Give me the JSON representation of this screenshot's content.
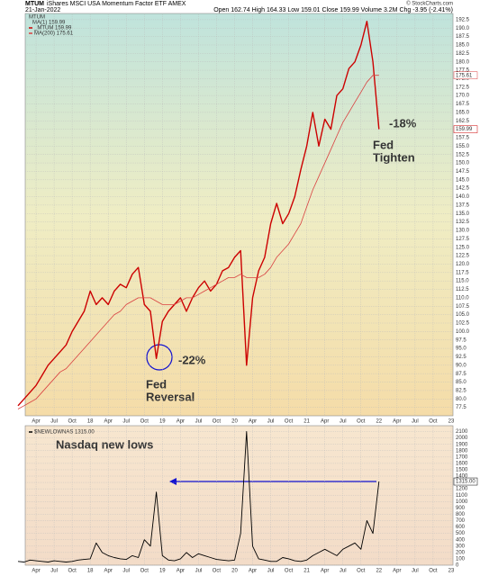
{
  "chart_data": [
    {
      "type": "line",
      "title": "MTUM",
      "subtitle": "iShares MSCI USA Momentum Factor ETF AMEX",
      "date": "21-Jan-2022",
      "quote": "Open 162.74  High 164.33  Low 159.01  Close 159.99  Volume 3.2M  Chg -3.95 (-2.41%)",
      "credit": "© StockCharts.com",
      "legend_title": "MTUM",
      "legend_extra": "MA(1) 159.99",
      "annotations": [
        "-22%",
        "Fed",
        "Reversal",
        "-18%",
        "Fed",
        "Tighten"
      ],
      "categories": [
        null,
        null,
        null,
        "Apr",
        null,
        null,
        "Jul",
        null,
        null,
        "Oct",
        null,
        null,
        "18",
        null,
        null,
        "Apr",
        null,
        null,
        "Jul",
        null,
        null,
        "Oct",
        null,
        null,
        "19",
        null,
        null,
        "Apr",
        null,
        null,
        "Jul",
        null,
        null,
        "Oct",
        null,
        null,
        "20",
        null,
        null,
        "Apr",
        null,
        null,
        "Jul",
        null,
        null,
        "Oct",
        null,
        null,
        "21",
        null,
        null,
        "Apr",
        null,
        null,
        "Jul",
        null,
        null,
        "Oct",
        null,
        null,
        "22",
        null,
        null,
        "Apr",
        null,
        null,
        "Jul",
        null,
        null,
        "Oct",
        null,
        null,
        "23"
      ],
      "series": [
        {
          "name": "_MTUM 159.99",
          "color": "#cc0000",
          "width": 1.4,
          "last_label": "159.99",
          "values": [
            78,
            80,
            82,
            84,
            87,
            90,
            92,
            94,
            96,
            100,
            103,
            106,
            112,
            108,
            110,
            108,
            112,
            114,
            113,
            117,
            119,
            108,
            106,
            92,
            103,
            106,
            108,
            110,
            106,
            110,
            113,
            115,
            112,
            114,
            118,
            119,
            122,
            124,
            90,
            110,
            118,
            122,
            132,
            138,
            132,
            135,
            140,
            148,
            155,
            165,
            155,
            163,
            160,
            170,
            172,
            178,
            180,
            185,
            192,
            180,
            160,
            null,
            null,
            null,
            null,
            null,
            null,
            null,
            null,
            null,
            null,
            null,
            null
          ]
        },
        {
          "name": "MA(200) 175.61",
          "color": "#d94040",
          "width": 0.8,
          "last_label": "175.61",
          "values": [
            77,
            78,
            79,
            80,
            82,
            84,
            86,
            88,
            89,
            91,
            93,
            95,
            97,
            99,
            101,
            103,
            105,
            106,
            108,
            109,
            110,
            110,
            110,
            109,
            108,
            108,
            108,
            109,
            110,
            110,
            111,
            112,
            113,
            114,
            115,
            116,
            116,
            117,
            116,
            116,
            116,
            117,
            119,
            122,
            124,
            126,
            129,
            132,
            137,
            142,
            146,
            150,
            154,
            158,
            162,
            165,
            168,
            171,
            174,
            176,
            176,
            null,
            null,
            null,
            null,
            null,
            null,
            null,
            null,
            null,
            null,
            null,
            null
          ]
        }
      ],
      "ylim": [
        75,
        193
      ],
      "yticks": [
        77.5,
        {
          "value": 80,
          "label": "80.0"
        },
        82.5,
        {
          "value": 85,
          "label": "85.0"
        },
        87.5,
        {
          "value": 90,
          "label": "90.0"
        },
        92.5,
        {
          "value": 95,
          "label": "95.0"
        },
        97.5,
        {
          "value": 100,
          "label": "100.0"
        },
        102.5,
        {
          "value": 105,
          "label": "105.0"
        },
        107.5,
        {
          "value": 110,
          "label": "110.0"
        },
        112.5,
        {
          "value": 115,
          "label": "115.0"
        },
        117.5,
        {
          "value": 120,
          "label": "120.0"
        },
        122.5,
        {
          "value": 125,
          "label": "125.0"
        },
        127.5,
        {
          "value": 130,
          "label": "130.0"
        },
        132.5,
        {
          "value": 135,
          "label": "135.0"
        },
        137.5,
        {
          "value": 140,
          "label": "140.0"
        },
        142.5,
        {
          "value": 145,
          "label": "145.0"
        },
        147.5,
        {
          "value": 150,
          "label": "150.0"
        },
        152.5,
        {
          "value": 155,
          "label": "155.0"
        },
        157.5,
        {
          "value": 160,
          "label": "160.0"
        },
        162.5,
        {
          "value": 165,
          "label": "165.0"
        },
        167.5,
        {
          "value": 170,
          "label": "170.0"
        },
        172.5,
        {
          "value": 175,
          "label": "175.0"
        },
        177.5,
        {
          "value": 180,
          "label": "180.0"
        },
        182.5,
        {
          "value": 185,
          "label": "185.0"
        },
        187.5,
        {
          "value": 190,
          "label": "190.0"
        },
        192.5
      ],
      "grid": true
    },
    {
      "type": "line",
      "annotations": [
        "Nasdaq new lows"
      ],
      "categories": [
        null,
        null,
        null,
        "Apr",
        null,
        null,
        "Jul",
        null,
        null,
        "Oct",
        null,
        null,
        "18",
        null,
        null,
        "Apr",
        null,
        null,
        "Jul",
        null,
        null,
        "Oct",
        null,
        null,
        "19",
        null,
        null,
        "Apr",
        null,
        null,
        "Jul",
        null,
        null,
        "Oct",
        null,
        null,
        "20",
        null,
        null,
        "Apr",
        null,
        null,
        "Jul",
        null,
        null,
        "Oct",
        null,
        null,
        "21",
        null,
        null,
        "Apr",
        null,
        null,
        "Jul",
        null,
        null,
        "Oct",
        null,
        null,
        "22",
        null,
        null,
        "Apr",
        null,
        null,
        "Jul",
        null,
        null,
        "Oct",
        null,
        null,
        "23"
      ],
      "series": [
        {
          "name": "$NEWLOWNAS 1315.00",
          "color": "#000000",
          "width": 0.9,
          "last_label": "1315.00",
          "values": [
            60,
            50,
            80,
            70,
            60,
            50,
            70,
            60,
            50,
            60,
            80,
            90,
            100,
            350,
            200,
            150,
            120,
            100,
            90,
            150,
            120,
            400,
            300,
            1150,
            150,
            80,
            70,
            100,
            200,
            120,
            180,
            150,
            120,
            90,
            80,
            70,
            80,
            500,
            2100,
            300,
            100,
            80,
            60,
            60,
            120,
            100,
            70,
            60,
            80,
            150,
            200,
            250,
            200,
            150,
            250,
            300,
            350,
            250,
            700,
            500,
            1315,
            null,
            null,
            null,
            null,
            null,
            null,
            null,
            null,
            null,
            null,
            null,
            null
          ]
        }
      ],
      "ylim": [
        0,
        2150
      ],
      "yticks": [
        0,
        100,
        200,
        300,
        400,
        500,
        600,
        700,
        800,
        900,
        1000,
        1100,
        1200,
        1300,
        1400,
        1500,
        1600,
        1700,
        1800,
        1900,
        2000,
        2100
      ],
      "grid": true
    }
  ]
}
